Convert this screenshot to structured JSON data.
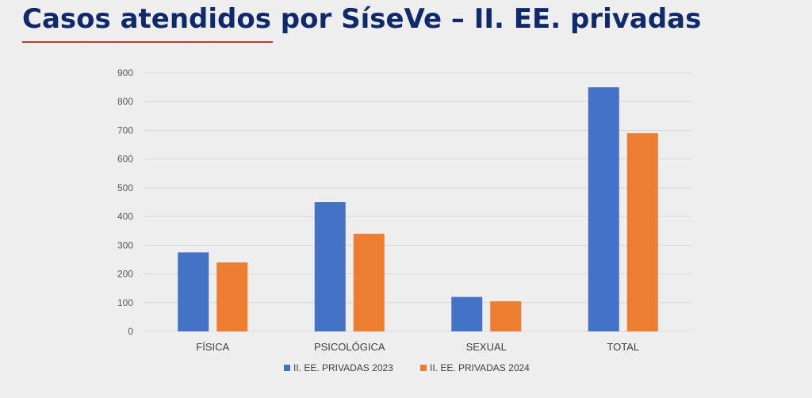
{
  "slide": {
    "title": "Casos atendidos por SíseVe – II. EE. privadas"
  },
  "colors": {
    "title": "#0f2a6b",
    "underline": "#c0392b",
    "series_2023": "#4472c4",
    "series_2024": "#ed7d31",
    "grid": "#d9d9d9",
    "background": "#eeeeee"
  },
  "chart_data": {
    "type": "bar",
    "title": "",
    "xlabel": "",
    "ylabel": "",
    "ylim": [
      0,
      900
    ],
    "yticks": [
      0,
      100,
      200,
      300,
      400,
      500,
      600,
      700,
      800,
      900
    ],
    "grid": true,
    "legend_position": "bottom",
    "categories": [
      "FÍSICA",
      "PSICOLÓGICA",
      "SEXUAL",
      "TOTAL"
    ],
    "series": [
      {
        "name": "II. EE. PRIVADAS 2023",
        "color": "#4472c4",
        "values": [
          275,
          450,
          120,
          850
        ]
      },
      {
        "name": "II. EE. PRIVADAS 2024",
        "color": "#ed7d31",
        "values": [
          240,
          340,
          105,
          690
        ]
      }
    ]
  }
}
